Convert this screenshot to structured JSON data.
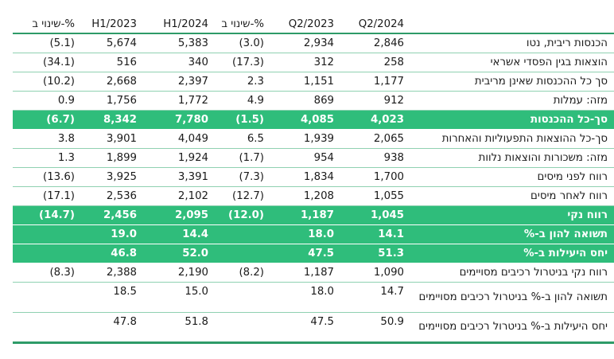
{
  "header": {
    "change_pct_1": "שינוי ב-%",
    "h1_2023": "H1/2023",
    "h1_2024": "H1/2024",
    "change_pct_2": "שינוי ב-%",
    "q2_2023": "Q2/2023",
    "q2_2024": "Q2/2024",
    "label": ""
  },
  "rows": [
    {
      "label": "הכנסות ריבית, נטו",
      "change_h": "(5.1)",
      "h1_2023": "5,674",
      "h1_2024": "5,383",
      "change_q": "(3.0)",
      "q2_2023": "2,934",
      "q2_2024": "2,846"
    },
    {
      "label": "הוצאות בגין הפסדי אשראי",
      "change_h": "(34.1)",
      "h1_2023": "516",
      "h1_2024": "340",
      "change_q": "(17.3)",
      "q2_2023": "312",
      "q2_2024": "258"
    },
    {
      "label": "סך כל ההכנסות שאינן מריבית",
      "change_h": "(10.2)",
      "h1_2023": "2,668",
      "h1_2024": "2,397",
      "change_q": "2.3",
      "q2_2023": "1,151",
      "q2_2024": "1,177"
    },
    {
      "label": "מזה: עמלות",
      "change_h": "0.9",
      "h1_2023": "1,756",
      "h1_2024": "1,772",
      "change_q": "4.9",
      "q2_2023": "869",
      "q2_2024": "912"
    },
    {
      "label": "סך-כל ההכנסות",
      "change_h": "(6.7)",
      "h1_2023": "8,342",
      "h1_2024": "7,780",
      "change_q": "(1.5)",
      "q2_2023": "4,085",
      "q2_2024": "4,023"
    },
    {
      "label": "סך-כל ההוצאות התפעוליות והאחרות",
      "change_h": "3.8",
      "h1_2023": "3,901",
      "h1_2024": "4,049",
      "change_q": "6.5",
      "q2_2023": "1,939",
      "q2_2024": "2,065"
    },
    {
      "label": "מזה: משכורות והוצאות נלוות",
      "change_h": "1.3",
      "h1_2023": "1,899",
      "h1_2024": "1,924",
      "change_q": "(1.7)",
      "q2_2023": "954",
      "q2_2024": "938"
    },
    {
      "label": "רווח לפני מיסים",
      "change_h": "(13.6)",
      "h1_2023": "3,925",
      "h1_2024": "3,391",
      "change_q": "(7.3)",
      "q2_2023": "1,834",
      "q2_2024": "1,700"
    },
    {
      "label": "רווח לאחר מיסים",
      "change_h": "(17.1)",
      "h1_2023": "2,536",
      "h1_2024": "2,102",
      "change_q": "(12.7)",
      "q2_2023": "1,208",
      "q2_2024": "1,055"
    },
    {
      "label": "רווח נקי",
      "change_h": "(14.7)",
      "h1_2023": "2,456",
      "h1_2024": "2,095",
      "change_q": "(12.0)",
      "q2_2023": "1,187",
      "q2_2024": "1,045"
    },
    {
      "label": "תשואה להון ב-%",
      "change_h": "",
      "h1_2023": "19.0",
      "h1_2024": "14.4",
      "change_q": "",
      "q2_2023": "18.0",
      "q2_2024": "14.1"
    },
    {
      "label": "יחס היעילות ב-%",
      "change_h": "",
      "h1_2023": "46.8",
      "h1_2024": "52.0",
      "change_q": "",
      "q2_2023": "47.5",
      "q2_2024": "51.3"
    },
    {
      "label": "רווח נקי בניטרול רכיבים מסויימים",
      "change_h": "(8.3)",
      "h1_2023": "2,388",
      "h1_2024": "2,190",
      "change_q": "(8.2)",
      "q2_2023": "1,187",
      "q2_2024": "1,090"
    },
    {
      "label": "תשואה להון ב-% בניטרול רכיבים מסויימים",
      "change_h": "",
      "h1_2023": "18.5",
      "h1_2024": "15.0",
      "change_q": "",
      "q2_2023": "18.0",
      "q2_2024": "14.7"
    },
    {
      "label": "יחס היעילות ב-% בניטרול רכיבים מסויימים",
      "change_h": "",
      "h1_2023": "47.8",
      "h1_2024": "51.8",
      "change_q": "",
      "q2_2023": "47.5",
      "q2_2024": "50.9"
    }
  ],
  "highlight_rows": [
    4,
    9,
    10,
    11
  ],
  "wrap_rows": [
    13,
    14
  ],
  "colors": {
    "highlight": "#2fbd7b",
    "rule": "#2e9b68",
    "row_divider": "#8fd1b1"
  }
}
